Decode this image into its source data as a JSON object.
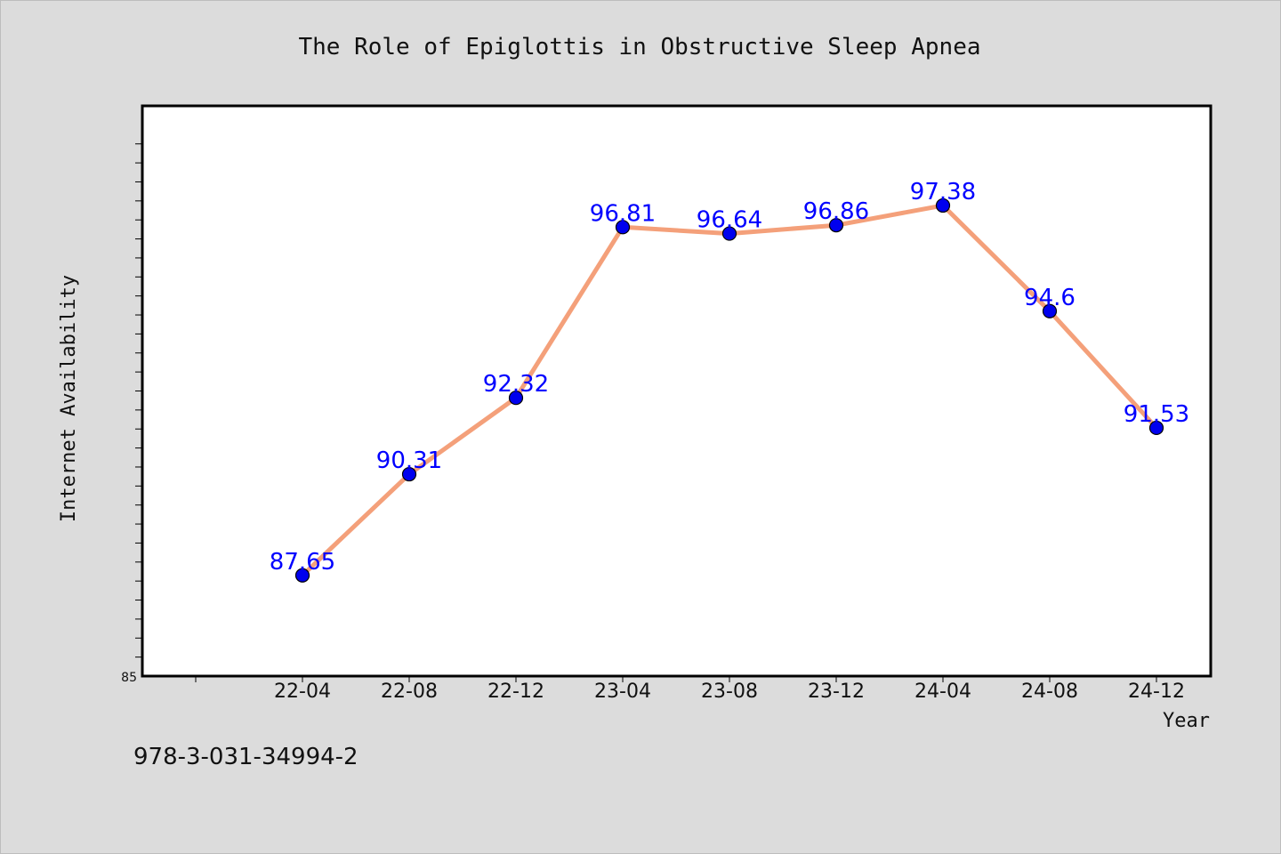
{
  "chart_data": {
    "type": "line",
    "title": "The Role of Epiglottis in Obstructive Sleep Apnea",
    "xlabel": "Year",
    "ylabel": "Internet Availability",
    "categories": [
      "22-04",
      "22-08",
      "22-12",
      "23-04",
      "23-08",
      "23-12",
      "24-04",
      "24-08",
      "24-12"
    ],
    "series": [
      {
        "values": [
          87.65,
          90.31,
          92.32,
          96.81,
          96.64,
          96.86,
          97.38,
          94.6,
          91.53
        ]
      }
    ],
    "data_labels": [
      "87.65",
      "90.31",
      "92.32",
      "96.81",
      "96.64",
      "96.86",
      "97.38",
      "94.6",
      "91.53"
    ],
    "y_tick_labels": [
      "85"
    ],
    "ylim": [
      85,
      100
    ],
    "grid": false,
    "legend": "none",
    "colors": {
      "line": "#f4a07a",
      "marker": "#0000ee",
      "label": "#0000ff",
      "plot_bg": "#ffffff",
      "page_bg": "#dcdcdc"
    }
  },
  "footer": {
    "isbn": "978-3-031-34994-2"
  }
}
